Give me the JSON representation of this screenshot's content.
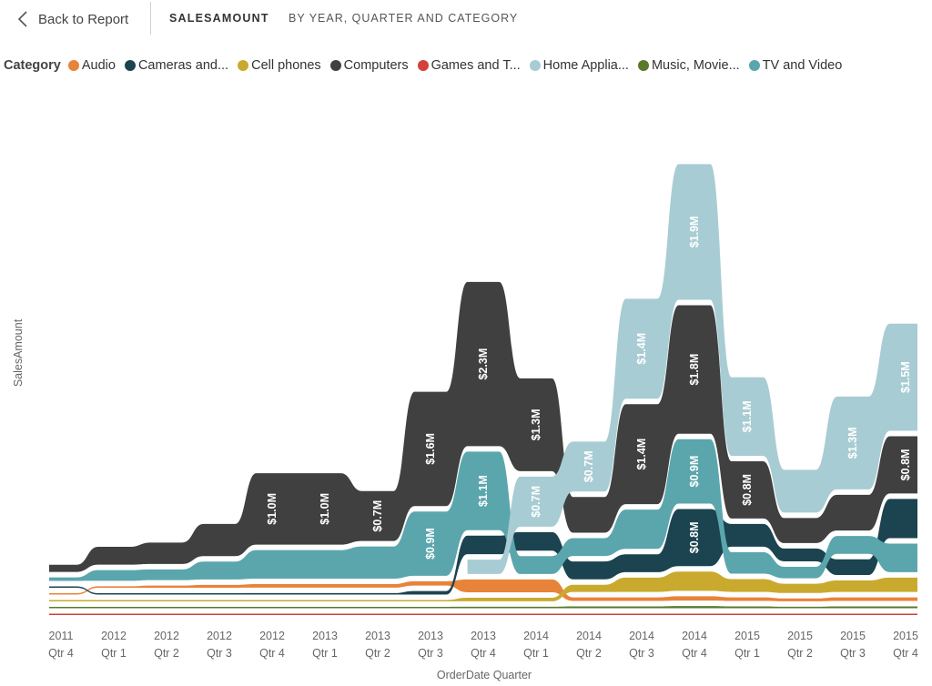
{
  "header": {
    "back_label": "Back to Report",
    "title": "SALESAMOUNT",
    "subtitle": "BY YEAR, QUARTER AND CATEGORY"
  },
  "legend": {
    "title": "Category",
    "items": [
      {
        "label": "Audio",
        "color": "#E8833A"
      },
      {
        "label": "Cameras and...",
        "color": "#1B4350"
      },
      {
        "label": "Cell phones",
        "color": "#C9AA2E"
      },
      {
        "label": "Computers",
        "color": "#404040"
      },
      {
        "label": "Games and T...",
        "color": "#D2413A"
      },
      {
        "label": "Home Applia...",
        "color": "#A8CCD3"
      },
      {
        "label": "Music, Movie...",
        "color": "#5A7A2B"
      },
      {
        "label": "TV and Video",
        "color": "#5BA6AD"
      }
    ]
  },
  "chart_data": {
    "type": "area",
    "subtype": "ribbon",
    "xlabel": "OrderDate Quarter",
    "ylabel": "SalesAmount",
    "x": [
      {
        "year": "2011",
        "quarter": "Qtr 4"
      },
      {
        "year": "2012",
        "quarter": "Qtr 1"
      },
      {
        "year": "2012",
        "quarter": "Qtr 2"
      },
      {
        "year": "2012",
        "quarter": "Qtr 3"
      },
      {
        "year": "2012",
        "quarter": "Qtr 4"
      },
      {
        "year": "2013",
        "quarter": "Qtr 1"
      },
      {
        "year": "2013",
        "quarter": "Qtr 2"
      },
      {
        "year": "2013",
        "quarter": "Qtr 3"
      },
      {
        "year": "2013",
        "quarter": "Qtr 4"
      },
      {
        "year": "2014",
        "quarter": "Qtr 1"
      },
      {
        "year": "2014",
        "quarter": "Qtr 2"
      },
      {
        "year": "2014",
        "quarter": "Qtr 3"
      },
      {
        "year": "2014",
        "quarter": "Qtr 4"
      },
      {
        "year": "2015",
        "quarter": "Qtr 1"
      },
      {
        "year": "2015",
        "quarter": "Qtr 2"
      },
      {
        "year": "2015",
        "quarter": "Qtr 3"
      },
      {
        "year": "2015",
        "quarter": "Qtr 4"
      }
    ],
    "series": [
      {
        "name": "Games and T...",
        "color": "#D2413A",
        "values": [
          0.005,
          0.005,
          0.005,
          0.005,
          0.005,
          0.005,
          0.005,
          0.01,
          0.01,
          0.01,
          0.015,
          0.015,
          0.015,
          0.015,
          0.015,
          0.015,
          0.015
        ]
      },
      {
        "name": "Music, Movie...",
        "color": "#5A7A2B",
        "values": [
          0.005,
          0.005,
          0.005,
          0.005,
          0.01,
          0.01,
          0.01,
          0.01,
          0.02,
          0.02,
          0.025,
          0.025,
          0.03,
          0.025,
          0.02,
          0.025,
          0.025
        ]
      },
      {
        "name": "Audio",
        "color": "#E8833A",
        "values": [
          0.01,
          0.02,
          0.03,
          0.04,
          0.05,
          0.05,
          0.05,
          0.06,
          0.18,
          0.18,
          0.05,
          0.05,
          0.06,
          0.05,
          0.04,
          0.05,
          0.05
        ]
      },
      {
        "name": "Cell phones",
        "color": "#C9AA2E",
        "values": [
          0.005,
          0.01,
          0.01,
          0.01,
          0.01,
          0.01,
          0.01,
          0.01,
          0.05,
          0.05,
          0.1,
          0.2,
          0.27,
          0.18,
          0.13,
          0.16,
          0.2
        ]
      },
      {
        "name": "Cameras and...",
        "color": "#1B4350",
        "values": [
          0.01,
          0.01,
          0.01,
          0.01,
          0.02,
          0.02,
          0.02,
          0.05,
          0.26,
          0.26,
          0.25,
          0.25,
          0.8,
          0.32,
          0.18,
          0.22,
          0.55
        ]
      },
      {
        "name": "TV and Video",
        "color": "#5BA6AD",
        "values": [
          0.05,
          0.15,
          0.15,
          0.25,
          0.4,
          0.4,
          0.45,
          0.9,
          1.1,
          0.25,
          0.25,
          0.55,
          0.9,
          0.3,
          0.16,
          0.25,
          0.4
        ]
      },
      {
        "name": "Computers",
        "color": "#404040",
        "values": [
          0.1,
          0.25,
          0.3,
          0.45,
          1.0,
          1.0,
          0.7,
          1.6,
          2.3,
          1.3,
          0.5,
          1.4,
          1.8,
          0.8,
          0.35,
          0.5,
          0.8
        ]
      },
      {
        "name": "Home Applia...",
        "color": "#A8CCD3",
        "values": [
          0,
          0,
          0,
          0,
          0,
          0,
          0,
          0,
          0.2,
          0.7,
          0.7,
          1.4,
          1.9,
          1.1,
          0.6,
          1.3,
          1.5
        ]
      }
    ],
    "data_labels": [
      {
        "series": "Computers",
        "index": 4,
        "text": "$1.0M"
      },
      {
        "series": "Computers",
        "index": 5,
        "text": "$1.0M"
      },
      {
        "series": "Computers",
        "index": 6,
        "text": "$0.7M"
      },
      {
        "series": "Computers",
        "index": 7,
        "text": "$1.6M"
      },
      {
        "series": "TV and Video",
        "index": 7,
        "text": "$0.9M"
      },
      {
        "series": "Computers",
        "index": 8,
        "text": "$2.3M"
      },
      {
        "series": "TV and Video",
        "index": 8,
        "text": "$1.1M"
      },
      {
        "series": "Computers",
        "index": 9,
        "text": "$1.3M"
      },
      {
        "series": "Home Applia...",
        "index": 9,
        "text": "$0.7M"
      },
      {
        "series": "Home Applia...",
        "index": 10,
        "text": "$0.7M"
      },
      {
        "series": "Home Applia...",
        "index": 11,
        "text": "$1.4M"
      },
      {
        "series": "Computers",
        "index": 11,
        "text": "$1.4M"
      },
      {
        "series": "Home Applia...",
        "index": 12,
        "text": "$1.9M"
      },
      {
        "series": "Computers",
        "index": 12,
        "text": "$1.8M"
      },
      {
        "series": "TV and Video",
        "index": 12,
        "text": "$0.9M"
      },
      {
        "series": "Cameras and...",
        "index": 12,
        "text": "$0.8M"
      },
      {
        "series": "Home Applia...",
        "index": 13,
        "text": "$1.1M"
      },
      {
        "series": "Computers",
        "index": 13,
        "text": "$0.8M"
      },
      {
        "series": "Home Applia...",
        "index": 15,
        "text": "$1.3M"
      },
      {
        "series": "Home Applia...",
        "index": 16,
        "text": "$1.5M"
      },
      {
        "series": "Computers",
        "index": 16,
        "text": "$0.8M"
      }
    ],
    "grid": false,
    "legend_position": "top-left"
  }
}
